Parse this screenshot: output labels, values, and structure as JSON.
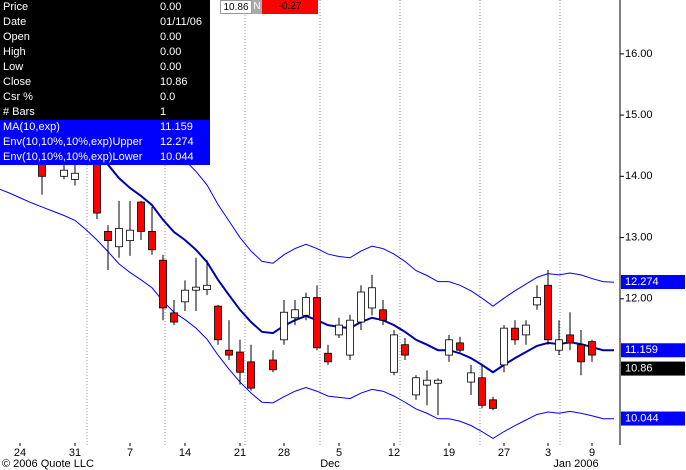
{
  "info_panel": {
    "rows": [
      {
        "label": "Price",
        "value": "0.00"
      },
      {
        "label": "Date",
        "value": "01/11/06"
      },
      {
        "label": "Open",
        "value": "0.00"
      },
      {
        "label": "High",
        "value": "0.00"
      },
      {
        "label": "Low",
        "value": "0.00"
      },
      {
        "label": "Close",
        "value": "10.86"
      },
      {
        "label": "Csr %",
        "value": "0.0"
      },
      {
        "label": "# Bars",
        "value": "1"
      }
    ]
  },
  "quote_bar": {
    "last": "10.86",
    "flag": "N",
    "change": "-0.27"
  },
  "chart_data": {
    "type": "candlestick",
    "footer": "© 2006 Quote LLC",
    "month_labels": [
      "Dec",
      "Jan 2006"
    ],
    "categories": [
      null,
      null,
      "24",
      null,
      null,
      null,
      null,
      "31",
      null,
      null,
      null,
      null,
      "7",
      null,
      null,
      null,
      null,
      "14",
      null,
      null,
      null,
      null,
      "21",
      null,
      null,
      null,
      "28",
      null,
      null,
      null,
      null,
      "5",
      null,
      null,
      null,
      null,
      "12",
      null,
      null,
      null,
      null,
      "19",
      null,
      null,
      null,
      null,
      "27",
      null,
      null,
      null,
      "3",
      null,
      null,
      null,
      "9",
      null,
      null
    ],
    "open": [
      null,
      null,
      null,
      null,
      14.2,
      null,
      14.0,
      13.95,
      null,
      14.45,
      13.1,
      12.85,
      12.95,
      13.58,
      13.1,
      12.63,
      11.77,
      11.95,
      12.14,
      12.15,
      11.88,
      11.16,
      11.13,
      10.97,
      null,
      11.0,
      11.33,
      11.69,
      11.73,
      12.02,
      11.11,
      11.41,
      11.08,
      11.62,
      11.85,
      11.82,
      10.8,
      11.25,
      10.43,
      10.59,
      10.62,
      11.08,
      11.28,
      10.64,
      10.71,
      10.35,
      10.92,
      11.52,
      11.41,
      11.9,
      12.22,
      11.16,
      11.41,
      11.25,
      11.3,
      null,
      null
    ],
    "high": [
      null,
      null,
      null,
      null,
      14.4,
      null,
      14.35,
      14.3,
      null,
      14.5,
      13.2,
      13.6,
      13.6,
      13.6,
      13.5,
      12.72,
      11.98,
      12.3,
      12.67,
      12.63,
      11.9,
      11.65,
      11.33,
      11.25,
      null,
      11.16,
      11.98,
      11.98,
      12.1,
      12.22,
      11.25,
      11.69,
      11.74,
      12.22,
      12.39,
      11.98,
      11.49,
      11.36,
      10.75,
      10.83,
      10.7,
      11.41,
      11.38,
      10.92,
      10.92,
      10.4,
      11.57,
      11.65,
      11.65,
      12.22,
      12.47,
      11.65,
      11.78,
      11.49,
      11.33,
      null,
      null
    ],
    "low": [
      null,
      null,
      null,
      null,
      13.7,
      null,
      13.95,
      13.85,
      null,
      13.3,
      12.47,
      12.67,
      12.7,
      12.96,
      12.72,
      11.65,
      11.57,
      11.8,
      11.8,
      12.06,
      11.25,
      11.0,
      10.6,
      10.5,
      null,
      10.8,
      11.25,
      11.57,
      11.65,
      11.16,
      10.92,
      11.36,
      11.0,
      11.49,
      11.73,
      11.57,
      10.75,
      11.0,
      10.35,
      10.26,
      10.1,
      10.97,
      11.13,
      10.43,
      10.21,
      10.18,
      10.8,
      11.25,
      11.25,
      11.82,
      11.25,
      11.08,
      11.16,
      10.75,
      10.97,
      null,
      null
    ],
    "close": [
      null,
      null,
      null,
      null,
      14.0,
      null,
      14.1,
      14.05,
      null,
      13.4,
      12.95,
      13.15,
      13.12,
      13.1,
      12.8,
      11.85,
      11.62,
      12.14,
      12.19,
      12.22,
      11.33,
      11.08,
      10.8,
      10.54,
      null,
      10.84,
      11.78,
      11.82,
      12.02,
      11.2,
      10.97,
      11.57,
      11.65,
      12.11,
      12.18,
      11.65,
      11.41,
      11.08,
      10.71,
      10.67,
      10.67,
      11.33,
      11.16,
      10.79,
      10.26,
      10.21,
      11.52,
      11.33,
      11.57,
      12.02,
      11.33,
      11.33,
      11.28,
      10.97,
      11.08,
      null,
      null
    ],
    "up_color": "#ffffff",
    "down_color": "#ff0000",
    "series": [
      {
        "name": "MA(10,exp)",
        "color": "#0000aa",
        "last": 11.159,
        "values": [
          15.33,
          15.25,
          15.17,
          15.08,
          15.0,
          14.92,
          14.84,
          14.76,
          14.59,
          14.4,
          14.19,
          13.97,
          13.81,
          13.68,
          13.53,
          13.29,
          13.09,
          12.96,
          12.8,
          12.6,
          12.31,
          12.06,
          11.82,
          11.62,
          11.46,
          11.44,
          11.56,
          11.65,
          11.72,
          11.65,
          11.57,
          11.54,
          11.52,
          11.62,
          11.69,
          11.65,
          11.57,
          11.46,
          11.33,
          11.25,
          11.16,
          11.16,
          11.11,
          11.03,
          10.92,
          10.8,
          10.92,
          11.03,
          11.13,
          11.23,
          11.28,
          11.26,
          11.29,
          11.26,
          11.21,
          11.16,
          11.16
        ]
      },
      {
        "name": "Env(10,10%,10%,exp)Upper",
        "color": "#0000ff",
        "last": 12.274,
        "values": [
          16.86,
          16.78,
          16.69,
          16.59,
          16.5,
          16.41,
          16.32,
          16.24,
          16.05,
          15.84,
          15.61,
          15.37,
          15.19,
          15.05,
          14.88,
          14.62,
          14.4,
          14.26,
          14.08,
          13.86,
          13.54,
          13.27,
          13.0,
          12.78,
          12.61,
          12.58,
          12.72,
          12.82,
          12.89,
          12.82,
          12.73,
          12.69,
          12.67,
          12.78,
          12.86,
          12.82,
          12.73,
          12.61,
          12.46,
          12.38,
          12.28,
          12.28,
          12.22,
          12.13,
          12.01,
          11.88,
          12.01,
          12.13,
          12.24,
          12.35,
          12.41,
          12.39,
          12.42,
          12.39,
          12.33,
          12.28,
          12.27
        ]
      },
      {
        "name": "Env(10,10%,10%,exp)Lower",
        "color": "#0000ff",
        "last": 10.044,
        "values": [
          13.8,
          13.73,
          13.65,
          13.57,
          13.5,
          13.43,
          13.36,
          13.28,
          13.13,
          12.96,
          12.77,
          12.57,
          12.43,
          12.31,
          12.18,
          11.96,
          11.78,
          11.66,
          11.52,
          11.34,
          11.08,
          10.85,
          10.64,
          10.46,
          10.31,
          10.3,
          10.4,
          10.49,
          10.55,
          10.49,
          10.41,
          10.39,
          10.37,
          10.46,
          10.52,
          10.49,
          10.41,
          10.31,
          10.2,
          10.13,
          10.04,
          10.04,
          10.0,
          9.93,
          9.83,
          9.72,
          9.83,
          9.93,
          10.02,
          10.11,
          10.15,
          10.13,
          10.16,
          10.13,
          10.09,
          10.04,
          10.04
        ]
      }
    ],
    "last_close": 10.86,
    "ylim": [
      9.53,
      16.88
    ],
    "yticks": [
      {
        "value": 12,
        "label": "12.00"
      },
      {
        "value": 13,
        "label": "13.00"
      },
      {
        "value": 14,
        "label": "14.00"
      },
      {
        "value": 15,
        "label": "15.00"
      },
      {
        "value": 16,
        "label": "16.00"
      }
    ]
  }
}
